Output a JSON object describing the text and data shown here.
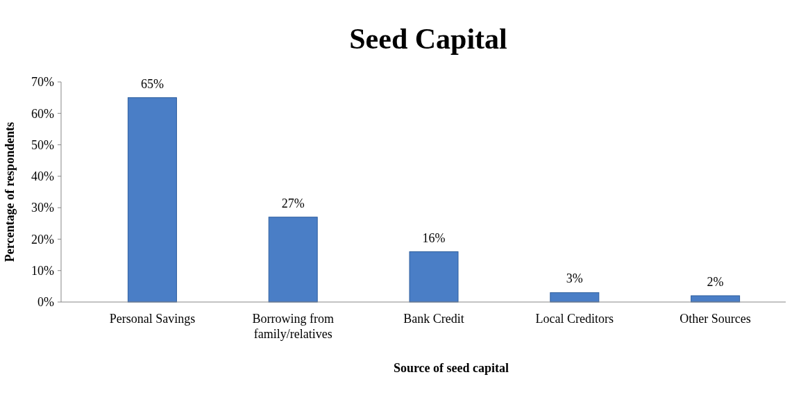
{
  "chart_data": {
    "type": "bar",
    "title": "Seed Capital",
    "xlabel": "Source of seed capital",
    "ylabel": "Percentage of respondents",
    "categories": [
      "Personal Savings",
      "Borrowing from family/relatives",
      "Bank Credit",
      "Local Creditors",
      "Other Sources"
    ],
    "values": [
      65,
      27,
      16,
      3,
      2
    ],
    "color": "#4a7ec6",
    "value_labels": [
      "65%",
      "27%",
      "16%",
      "3%",
      "2%"
    ],
    "ylim": [
      0,
      70
    ],
    "yticks": [
      {
        "value": 0,
        "label": "0%"
      },
      {
        "value": 10,
        "label": "10%"
      },
      {
        "value": 20,
        "label": "20%"
      },
      {
        "value": 30,
        "label": "30%"
      },
      {
        "value": 40,
        "label": "40%"
      },
      {
        "value": 50,
        "label": "50%"
      },
      {
        "value": 60,
        "label": "60%"
      },
      {
        "value": 70,
        "label": "70%"
      }
    ],
    "grid": false
  }
}
